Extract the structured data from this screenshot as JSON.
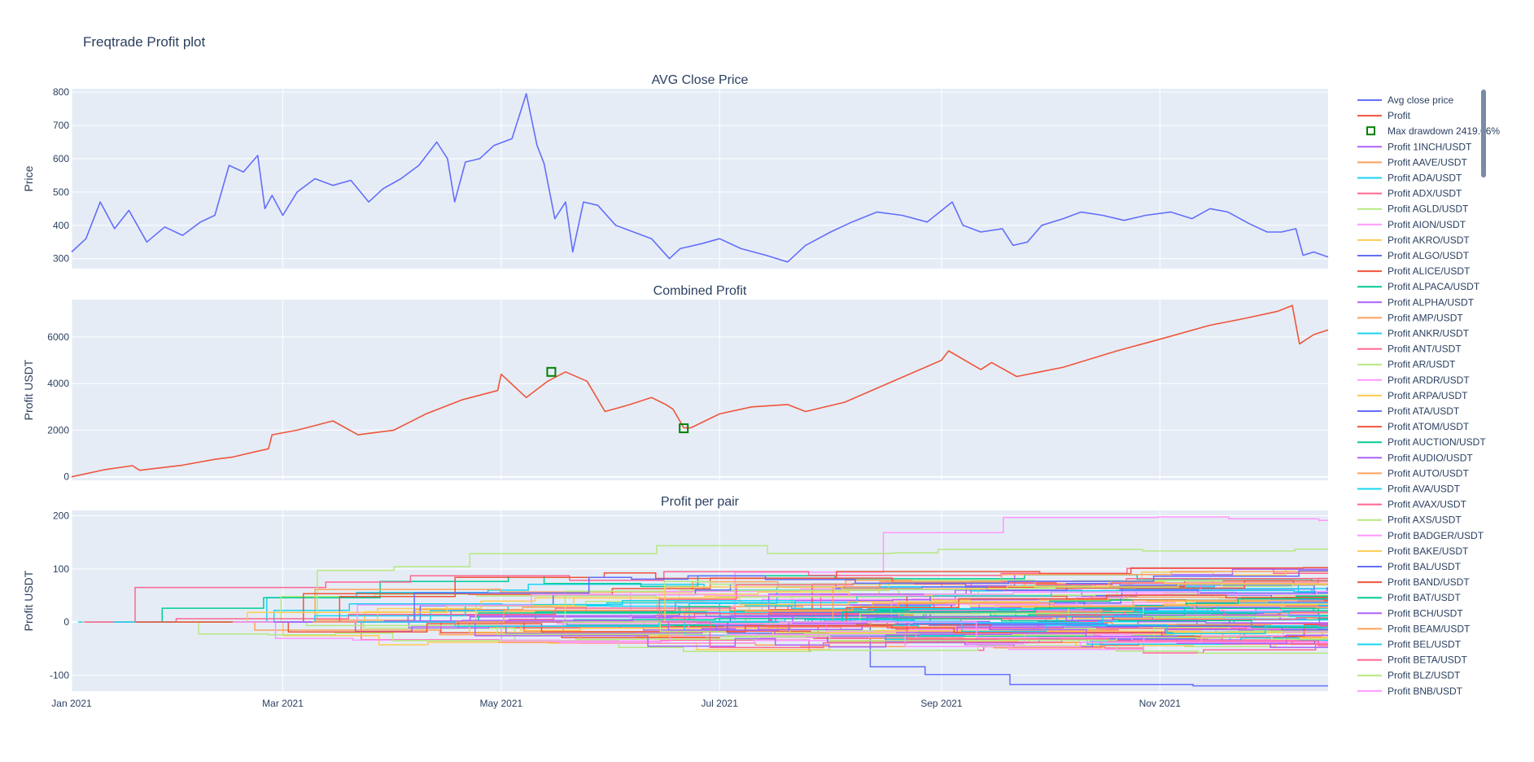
{
  "title": "Freqtrade Profit plot",
  "chart_data": [
    {
      "type": "line",
      "title": "AVG Close Price",
      "ylabel": "Price",
      "ylim": [
        270,
        810
      ],
      "yticks": [
        300,
        400,
        500,
        600,
        700,
        800
      ],
      "grid": true,
      "series": [
        {
          "name": "Avg close price",
          "color": "#636efa",
          "x": [
            "2021-01-01",
            "2021-01-05",
            "2021-01-09",
            "2021-01-13",
            "2021-01-17",
            "2021-01-22",
            "2021-01-27",
            "2021-02-01",
            "2021-02-06",
            "2021-02-10",
            "2021-02-14",
            "2021-02-18",
            "2021-02-22",
            "2021-02-24",
            "2021-02-26",
            "2021-03-01",
            "2021-03-05",
            "2021-03-10",
            "2021-03-15",
            "2021-03-20",
            "2021-03-25",
            "2021-03-29",
            "2021-04-03",
            "2021-04-08",
            "2021-04-13",
            "2021-04-16",
            "2021-04-18",
            "2021-04-21",
            "2021-04-25",
            "2021-04-29",
            "2021-05-04",
            "2021-05-08",
            "2021-05-11",
            "2021-05-13",
            "2021-05-16",
            "2021-05-19",
            "2021-05-21",
            "2021-05-24",
            "2021-05-28",
            "2021-06-02",
            "2021-06-07",
            "2021-06-12",
            "2021-06-17",
            "2021-06-20",
            "2021-06-22",
            "2021-06-26",
            "2021-07-01",
            "2021-07-07",
            "2021-07-14",
            "2021-07-20",
            "2021-07-25",
            "2021-08-01",
            "2021-08-07",
            "2021-08-14",
            "2021-08-21",
            "2021-08-28",
            "2021-09-04",
            "2021-09-07",
            "2021-09-12",
            "2021-09-18",
            "2021-09-21",
            "2021-09-25",
            "2021-09-29",
            "2021-10-05",
            "2021-10-10",
            "2021-10-16",
            "2021-10-22",
            "2021-10-28",
            "2021-11-04",
            "2021-11-10",
            "2021-11-15",
            "2021-11-20",
            "2021-11-26",
            "2021-12-01",
            "2021-12-05",
            "2021-12-09",
            "2021-12-11",
            "2021-12-14",
            "2021-12-18"
          ],
          "y": [
            320,
            360,
            470,
            390,
            445,
            350,
            395,
            370,
            410,
            430,
            580,
            560,
            610,
            450,
            490,
            430,
            500,
            540,
            520,
            535,
            470,
            510,
            540,
            580,
            650,
            600,
            470,
            590,
            600,
            640,
            660,
            795,
            640,
            585,
            420,
            470,
            320,
            470,
            460,
            400,
            380,
            360,
            300,
            330,
            335,
            345,
            360,
            330,
            310,
            290,
            340,
            380,
            410,
            440,
            430,
            410,
            470,
            400,
            380,
            390,
            340,
            350,
            400,
            420,
            440,
            430,
            415,
            430,
            440,
            420,
            450,
            440,
            405,
            380,
            380,
            390,
            310,
            320,
            305
          ]
        }
      ]
    },
    {
      "type": "line",
      "title": "Combined Profit",
      "ylabel": "Profit USDT",
      "ylim": [
        -150,
        7600
      ],
      "yticks": [
        0,
        2000,
        4000,
        6000
      ],
      "grid": true,
      "series": [
        {
          "name": "Profit",
          "color": "#ef553b",
          "x": [
            "2021-01-01",
            "2021-01-10",
            "2021-01-18",
            "2021-01-20",
            "2021-02-01",
            "2021-02-10",
            "2021-02-15",
            "2021-02-22",
            "2021-02-25",
            "2021-02-26",
            "2021-03-05",
            "2021-03-15",
            "2021-03-22",
            "2021-04-01",
            "2021-04-10",
            "2021-04-20",
            "2021-04-30",
            "2021-05-01",
            "2021-05-08",
            "2021-05-14",
            "2021-05-19",
            "2021-05-25",
            "2021-05-30",
            "2021-06-06",
            "2021-06-12",
            "2021-06-16",
            "2021-06-18",
            "2021-06-21",
            "2021-06-23",
            "2021-07-01",
            "2021-07-10",
            "2021-07-20",
            "2021-07-25",
            "2021-08-05",
            "2021-08-20",
            "2021-09-01",
            "2021-09-03",
            "2021-09-12",
            "2021-09-15",
            "2021-09-22",
            "2021-10-05",
            "2021-10-20",
            "2021-11-01",
            "2021-11-15",
            "2021-11-25",
            "2021-12-04",
            "2021-12-08",
            "2021-12-10",
            "2021-12-14",
            "2021-12-18"
          ],
          "y": [
            0,
            300,
            480,
            280,
            500,
            750,
            850,
            1100,
            1200,
            1800,
            2000,
            2400,
            1800,
            2000,
            2700,
            3300,
            3700,
            4400,
            3400,
            4100,
            4500,
            4100,
            2800,
            3100,
            3400,
            3100,
            2900,
            2100,
            2100,
            2700,
            3000,
            3100,
            2800,
            3200,
            4200,
            5000,
            5400,
            4600,
            4900,
            4300,
            4700,
            5400,
            5900,
            6500,
            6800,
            7100,
            7350,
            5700,
            6100,
            6300
          ]
        }
      ],
      "drawdown": {
        "name": "Max drawdown 2419.06%",
        "color": "#008000",
        "x": [
          "2021-05-15",
          "2021-06-21"
        ],
        "y": [
          4500,
          2081
        ]
      }
    },
    {
      "type": "line",
      "title": "Profit per pair",
      "ylabel": "Profit USDT",
      "ylim": [
        -130,
        210
      ],
      "yticks": [
        -100,
        0,
        100,
        200
      ],
      "xlim": [
        "2021-01-01",
        "2021-12-18"
      ],
      "xticks": [
        "Jan 2021",
        "Mar 2021",
        "May 2021",
        "Jul 2021",
        "Sep 2021",
        "Nov 2021"
      ],
      "grid": true,
      "series": [
        {
          "name": "Profit 1INCH/USDT",
          "color": "#ab63fa"
        },
        {
          "name": "Profit AAVE/USDT",
          "color": "#ffa15a"
        },
        {
          "name": "Profit ADA/USDT",
          "color": "#19d3f3"
        },
        {
          "name": "Profit ADX/USDT",
          "color": "#ff6692"
        },
        {
          "name": "Profit AGLD/USDT",
          "color": "#b6e880"
        },
        {
          "name": "Profit AION/USDT",
          "color": "#ff97ff"
        },
        {
          "name": "Profit AKRO/USDT",
          "color": "#fecb52"
        },
        {
          "name": "Profit ALGO/USDT",
          "color": "#636efa"
        },
        {
          "name": "Profit ALICE/USDT",
          "color": "#ef553b"
        },
        {
          "name": "Profit ALPACA/USDT",
          "color": "#00cc96"
        },
        {
          "name": "Profit ALPHA/USDT",
          "color": "#ab63fa"
        },
        {
          "name": "Profit AMP/USDT",
          "color": "#ffa15a"
        },
        {
          "name": "Profit ANKR/USDT",
          "color": "#19d3f3"
        },
        {
          "name": "Profit ANT/USDT",
          "color": "#ff6692"
        },
        {
          "name": "Profit AR/USDT",
          "color": "#b6e880"
        },
        {
          "name": "Profit ARDR/USDT",
          "color": "#ff97ff"
        },
        {
          "name": "Profit ARPA/USDT",
          "color": "#fecb52"
        },
        {
          "name": "Profit ATA/USDT",
          "color": "#636efa"
        },
        {
          "name": "Profit ATOM/USDT",
          "color": "#ef553b"
        },
        {
          "name": "Profit AUCTION/USDT",
          "color": "#00cc96"
        },
        {
          "name": "Profit AUDIO/USDT",
          "color": "#ab63fa"
        },
        {
          "name": "Profit AUTO/USDT",
          "color": "#ffa15a"
        },
        {
          "name": "Profit AVA/USDT",
          "color": "#19d3f3"
        },
        {
          "name": "Profit AVAX/USDT",
          "color": "#ff6692"
        },
        {
          "name": "Profit AXS/USDT",
          "color": "#b6e880"
        },
        {
          "name": "Profit BADGER/USDT",
          "color": "#ff97ff"
        },
        {
          "name": "Profit BAKE/USDT",
          "color": "#fecb52"
        },
        {
          "name": "Profit BAL/USDT",
          "color": "#636efa"
        },
        {
          "name": "Profit BAND/USDT",
          "color": "#ef553b"
        },
        {
          "name": "Profit BAT/USDT",
          "color": "#00cc96"
        },
        {
          "name": "Profit BCH/USDT",
          "color": "#ab63fa"
        },
        {
          "name": "Profit BEAM/USDT",
          "color": "#ffa15a"
        },
        {
          "name": "Profit BEL/USDT",
          "color": "#19d3f3"
        },
        {
          "name": "Profit BETA/USDT",
          "color": "#ff6692"
        },
        {
          "name": "Profit BLZ/USDT",
          "color": "#b6e880"
        },
        {
          "name": "Profit BNB/USDT",
          "color": "#ff97ff"
        }
      ]
    }
  ],
  "legend": {
    "placement": "right",
    "items": [
      {
        "label": "Avg close price",
        "color": "#636efa",
        "kind": "line"
      },
      {
        "label": "Profit",
        "color": "#ef553b",
        "kind": "line"
      },
      {
        "label": "Max drawdown 2419.06%",
        "color": "#008000",
        "kind": "marker"
      },
      {
        "label": "Profit 1INCH/USDT",
        "color": "#ab63fa",
        "kind": "line"
      },
      {
        "label": "Profit AAVE/USDT",
        "color": "#ffa15a",
        "kind": "line"
      },
      {
        "label": "Profit ADA/USDT",
        "color": "#19d3f3",
        "kind": "line"
      },
      {
        "label": "Profit ADX/USDT",
        "color": "#ff6692",
        "kind": "line"
      },
      {
        "label": "Profit AGLD/USDT",
        "color": "#b6e880",
        "kind": "line"
      },
      {
        "label": "Profit AION/USDT",
        "color": "#ff97ff",
        "kind": "line"
      },
      {
        "label": "Profit AKRO/USDT",
        "color": "#fecb52",
        "kind": "line"
      },
      {
        "label": "Profit ALGO/USDT",
        "color": "#636efa",
        "kind": "line"
      },
      {
        "label": "Profit ALICE/USDT",
        "color": "#ef553b",
        "kind": "line"
      },
      {
        "label": "Profit ALPACA/USDT",
        "color": "#00cc96",
        "kind": "line"
      },
      {
        "label": "Profit ALPHA/USDT",
        "color": "#ab63fa",
        "kind": "line"
      },
      {
        "label": "Profit AMP/USDT",
        "color": "#ffa15a",
        "kind": "line"
      },
      {
        "label": "Profit ANKR/USDT",
        "color": "#19d3f3",
        "kind": "line"
      },
      {
        "label": "Profit ANT/USDT",
        "color": "#ff6692",
        "kind": "line"
      },
      {
        "label": "Profit AR/USDT",
        "color": "#b6e880",
        "kind": "line"
      },
      {
        "label": "Profit ARDR/USDT",
        "color": "#ff97ff",
        "kind": "line"
      },
      {
        "label": "Profit ARPA/USDT",
        "color": "#fecb52",
        "kind": "line"
      },
      {
        "label": "Profit ATA/USDT",
        "color": "#636efa",
        "kind": "line"
      },
      {
        "label": "Profit ATOM/USDT",
        "color": "#ef553b",
        "kind": "line"
      },
      {
        "label": "Profit AUCTION/USDT",
        "color": "#00cc96",
        "kind": "line"
      },
      {
        "label": "Profit AUDIO/USDT",
        "color": "#ab63fa",
        "kind": "line"
      },
      {
        "label": "Profit AUTO/USDT",
        "color": "#ffa15a",
        "kind": "line"
      },
      {
        "label": "Profit AVA/USDT",
        "color": "#19d3f3",
        "kind": "line"
      },
      {
        "label": "Profit AVAX/USDT",
        "color": "#ff6692",
        "kind": "line"
      },
      {
        "label": "Profit AXS/USDT",
        "color": "#b6e880",
        "kind": "line"
      },
      {
        "label": "Profit BADGER/USDT",
        "color": "#ff97ff",
        "kind": "line"
      },
      {
        "label": "Profit BAKE/USDT",
        "color": "#fecb52",
        "kind": "line"
      },
      {
        "label": "Profit BAL/USDT",
        "color": "#636efa",
        "kind": "line"
      },
      {
        "label": "Profit BAND/USDT",
        "color": "#ef553b",
        "kind": "line"
      },
      {
        "label": "Profit BAT/USDT",
        "color": "#00cc96",
        "kind": "line"
      },
      {
        "label": "Profit BCH/USDT",
        "color": "#ab63fa",
        "kind": "line"
      },
      {
        "label": "Profit BEAM/USDT",
        "color": "#ffa15a",
        "kind": "line"
      },
      {
        "label": "Profit BEL/USDT",
        "color": "#19d3f3",
        "kind": "line"
      },
      {
        "label": "Profit BETA/USDT",
        "color": "#ff6692",
        "kind": "line"
      },
      {
        "label": "Profit BLZ/USDT",
        "color": "#b6e880",
        "kind": "line"
      },
      {
        "label": "Profit BNB/USDT",
        "color": "#ff97ff",
        "kind": "line"
      }
    ]
  }
}
